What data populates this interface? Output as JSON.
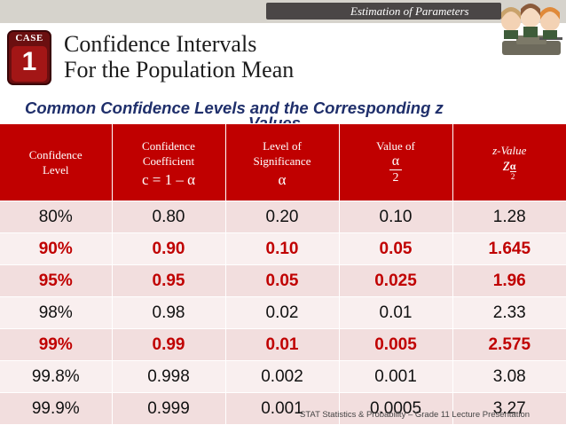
{
  "header": {
    "section_label": "Estimation of Parameters",
    "case_label": "CASE",
    "case_number": "1",
    "title_line1": "Confidence Intervals",
    "title_line2": "For the Population Mean",
    "subtitle": "Common Confidence Levels and the Corresponding z",
    "subtitle_cont": "Values"
  },
  "table": {
    "headers": {
      "confidence_level": [
        "Confidence",
        "Level"
      ],
      "confidence_coefficient": [
        "Confidence",
        "Coefficient",
        "c = 1 – α"
      ],
      "significance": [
        "Level of",
        "Significance",
        "α"
      ],
      "value_of": [
        "Value of",
        "α",
        "2"
      ],
      "z_value": [
        "z-Value",
        "z",
        "α",
        "2"
      ]
    },
    "rows": [
      {
        "cells": [
          "80%",
          "0.80",
          "0.20",
          "0.10",
          "1.28"
        ],
        "highlight": false
      },
      {
        "cells": [
          "90%",
          "0.90",
          "0.10",
          "0.05",
          "1.645"
        ],
        "highlight": true
      },
      {
        "cells": [
          "95%",
          "0.95",
          "0.05",
          "0.025",
          "1.96"
        ],
        "highlight": true
      },
      {
        "cells": [
          "98%",
          "0.98",
          "0.02",
          "0.01",
          "2.33"
        ],
        "highlight": false
      },
      {
        "cells": [
          "99%",
          "0.99",
          "0.01",
          "0.005",
          "2.575"
        ],
        "highlight": true
      },
      {
        "cells": [
          "99.8%",
          "0.998",
          "0.002",
          "0.001",
          "3.08"
        ],
        "highlight": false
      },
      {
        "cells": [
          "99.9%",
          "0.999",
          "0.001",
          "0.0005",
          "3.27"
        ],
        "highlight": false
      }
    ]
  },
  "footer": {
    "text": "STAT Statistics & Probability – Grade 11 Lecture Presentation"
  },
  "colors": {
    "accent_red": "#c00000",
    "subtitle_blue": "#1f2f6b",
    "row_light": "#f9efef",
    "row_dark": "#f2dede"
  }
}
